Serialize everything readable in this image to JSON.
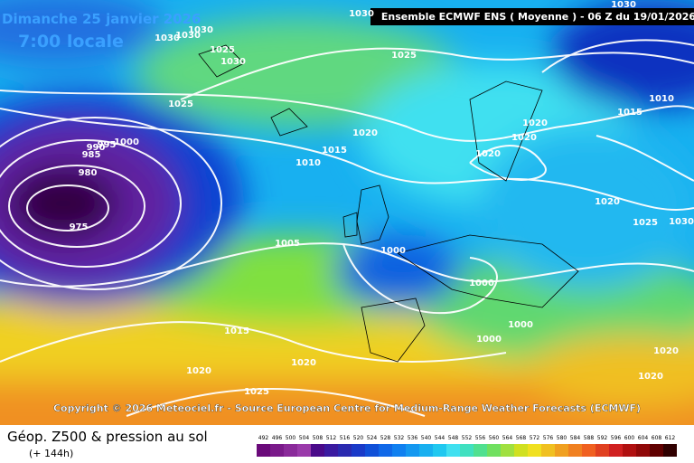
{
  "header": {
    "date": "Dimanche 25 janvier 2026",
    "time": "7:00 locale",
    "run": "Ensemble ECMWF ENS  ( Moyenne )  -  06 Z du 19/01/2026"
  },
  "copyright": "Copyright © 2026 Meteociel.fr - Source European Centre for Medium-Range Weather Forecasts (ECMWF)",
  "footer": {
    "title": "Géop. Z500 & pression au sol",
    "lead": "(+ 144h)"
  },
  "colorbar": {
    "labels": [
      492,
      496,
      500,
      504,
      508,
      512,
      516,
      520,
      524,
      528,
      532,
      536,
      540,
      544,
      548,
      552,
      556,
      560,
      564,
      568,
      572,
      576,
      580,
      584,
      588,
      592,
      596,
      600,
      604,
      608,
      612
    ]
  },
  "isobars": [
    1030,
    1030,
    1030,
    1030,
    1025,
    1030,
    1025,
    1025,
    1020,
    1015,
    1010,
    1000,
    995,
    990,
    985,
    980,
    975,
    1005,
    1000,
    1000,
    1000,
    1000,
    1015,
    1020,
    1020,
    1025,
    1020,
    1020,
    1020,
    1020,
    1025,
    1030,
    1010,
    1015,
    1030,
    1020,
    1020
  ]
}
